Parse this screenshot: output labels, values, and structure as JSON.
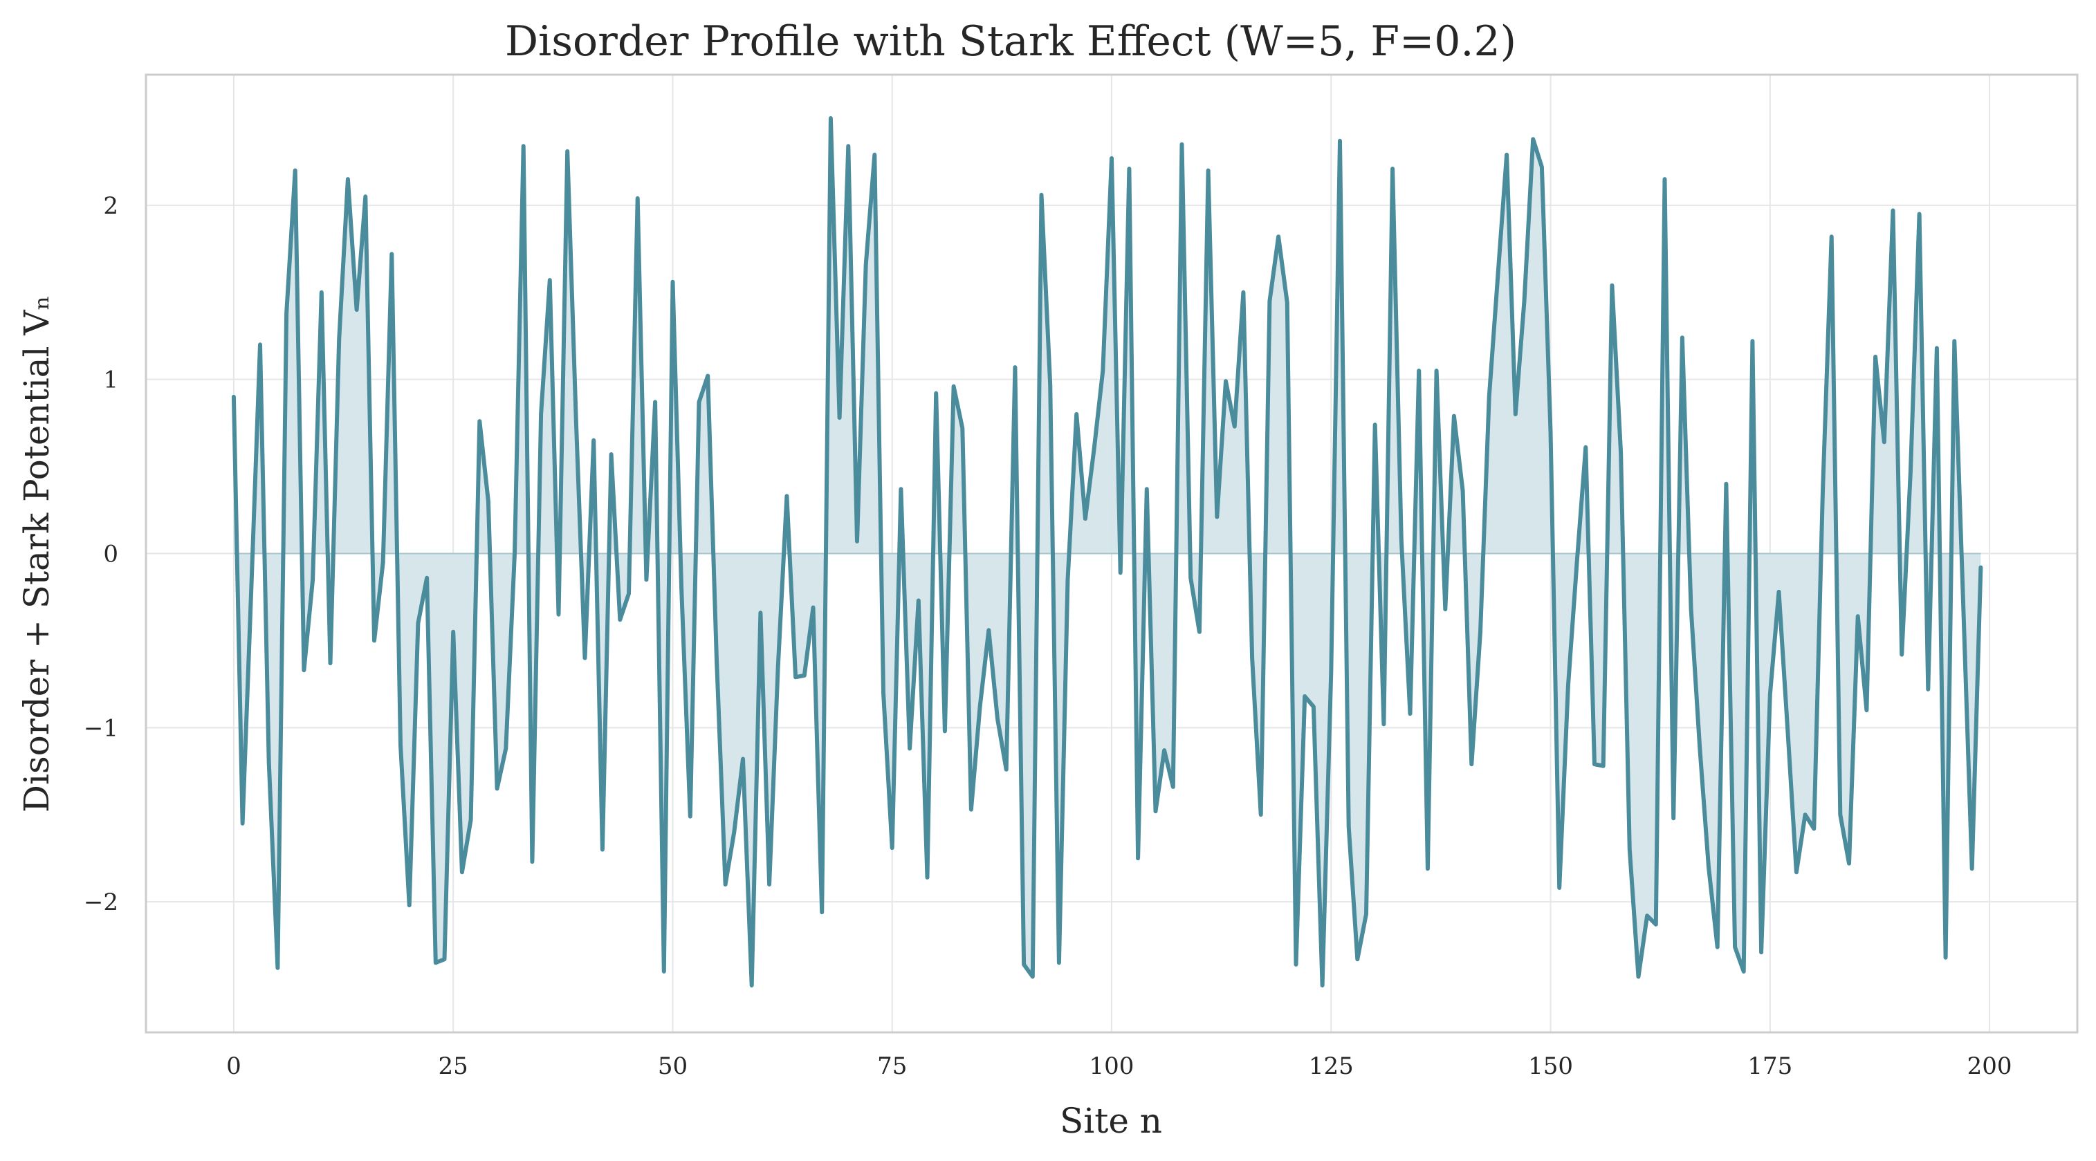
{
  "chart_data": {
    "type": "line",
    "title": "Disorder Profile with Stark Effect (W=5, F=0.2)",
    "xlabel": "Site n",
    "ylabel": "Disorder + Stark Potential Vₙ",
    "xlim": [
      -10,
      210
    ],
    "ylim": [
      -2.75,
      2.75
    ],
    "xticks": [
      0,
      25,
      50,
      75,
      100,
      125,
      150,
      175,
      200
    ],
    "yticks": [
      -2,
      -1,
      0,
      1,
      2
    ],
    "grid": true,
    "legend": "none",
    "fill_to_zero": true,
    "colors": {
      "line": "#4a8b9c",
      "fill": "#d4e5ea",
      "grid": "#e6e6e6",
      "spine": "#cccccc"
    },
    "series": [
      {
        "x": [
          0,
          1,
          2,
          3,
          4,
          5,
          6,
          7,
          8,
          9,
          10,
          11,
          12,
          13,
          14,
          15,
          16,
          17,
          18,
          19,
          20,
          21,
          22,
          23,
          24,
          25,
          26,
          27,
          28,
          29,
          30,
          31,
          32,
          33,
          34,
          35,
          36,
          37,
          38,
          39,
          40,
          41,
          42,
          43,
          44,
          45,
          46,
          47,
          48,
          49,
          50,
          51,
          52,
          53,
          54,
          55,
          56,
          57,
          58,
          59,
          60,
          61,
          62,
          63,
          64,
          65,
          66,
          67,
          68,
          69,
          70,
          71,
          72,
          73,
          74,
          75,
          76,
          77,
          78,
          79,
          80,
          81,
          82,
          83,
          84,
          85,
          86,
          87,
          88,
          89,
          90,
          91,
          92,
          93,
          94,
          95,
          96,
          97,
          98,
          99,
          100,
          101,
          102,
          103,
          104,
          105,
          106,
          107,
          108,
          109,
          110,
          111,
          112,
          113,
          114,
          115,
          116,
          117,
          118,
          119,
          120,
          121,
          122,
          123,
          124,
          125,
          126,
          127,
          128,
          129,
          130,
          131,
          132,
          133,
          134,
          135,
          136,
          137,
          138,
          139,
          140,
          141,
          142,
          143,
          144,
          145,
          146,
          147,
          148,
          149,
          150,
          151,
          152,
          153,
          154,
          155,
          156,
          157,
          158,
          159,
          160,
          161,
          162,
          163,
          164,
          165,
          166,
          167,
          168,
          169,
          170,
          171,
          172,
          173,
          174,
          175,
          176,
          177,
          178,
          179,
          180,
          181,
          182,
          183,
          184,
          185,
          186,
          187,
          188,
          189,
          190,
          191,
          192,
          193,
          194,
          195,
          196,
          197,
          198,
          199
        ],
        "values": [
          0.9,
          -1.55,
          -0.2,
          1.2,
          -1.2,
          -2.38,
          1.38,
          2.2,
          -0.67,
          -0.15,
          1.5,
          -0.63,
          1.23,
          2.15,
          1.4,
          2.05,
          -0.5,
          -0.05,
          1.72,
          -1.1,
          -2.02,
          -0.4,
          -0.14,
          -2.35,
          -2.33,
          -0.45,
          -1.83,
          -1.53,
          0.76,
          0.3,
          -1.35,
          -1.12,
          0.0,
          2.34,
          -1.77,
          0.8,
          1.57,
          -0.35,
          2.31,
          0.75,
          -0.6,
          0.65,
          -1.7,
          0.57,
          -0.38,
          -0.23,
          2.04,
          -0.15,
          0.87,
          -2.4,
          1.56,
          -0.2,
          -1.51,
          0.87,
          1.02,
          -0.6,
          -1.9,
          -1.6,
          -1.18,
          -2.48,
          -0.34,
          -1.9,
          -0.65,
          0.33,
          -0.71,
          -0.7,
          -0.31,
          -2.06,
          2.5,
          0.78,
          2.34,
          0.07,
          1.66,
          2.29,
          -0.8,
          -1.69,
          0.37,
          -1.12,
          -0.27,
          -1.86,
          0.92,
          -1.02,
          0.96,
          0.72,
          -1.47,
          -0.88,
          -0.44,
          -0.95,
          -1.24,
          1.07,
          -2.36,
          -2.43,
          2.06,
          0.97,
          -2.35,
          -0.15,
          0.8,
          0.2,
          0.6,
          1.05,
          2.27,
          -0.11,
          2.21,
          -1.75,
          0.37,
          -1.48,
          -1.13,
          -1.34,
          2.35,
          -0.14,
          -0.45,
          2.2,
          0.21,
          0.99,
          0.73,
          1.5,
          -0.6,
          -1.5,
          1.45,
          1.82,
          1.44,
          -2.36,
          -0.82,
          -0.88,
          -2.48,
          -0.68,
          2.37,
          -1.57,
          -2.33,
          -2.07,
          0.74,
          -0.98,
          2.21,
          0.08,
          -0.92,
          1.05,
          -1.81,
          1.05,
          -0.32,
          0.79,
          0.36,
          -1.21,
          -0.45,
          0.9,
          1.6,
          2.29,
          0.8,
          1.45,
          2.38,
          2.22,
          0.7,
          -1.92,
          -0.76,
          -0.05,
          0.61,
          -1.21,
          -1.22,
          1.54,
          0.58,
          -1.7,
          -2.43,
          -2.08,
          -2.13,
          2.15,
          -1.52,
          1.24,
          -0.32,
          -1.12,
          -1.8,
          -2.26,
          0.4,
          -2.26,
          -2.4,
          1.22,
          -2.29,
          -0.81,
          -0.22,
          -1.01,
          -1.83,
          -1.5,
          -1.58,
          0.36,
          1.82,
          -1.5,
          -1.78,
          -0.36,
          -0.9,
          1.13,
          0.64,
          1.97,
          -0.58,
          0.47,
          1.95,
          -0.78,
          1.18,
          -2.32,
          1.22,
          -0.28,
          -1.81,
          -0.08
        ]
      }
    ]
  }
}
